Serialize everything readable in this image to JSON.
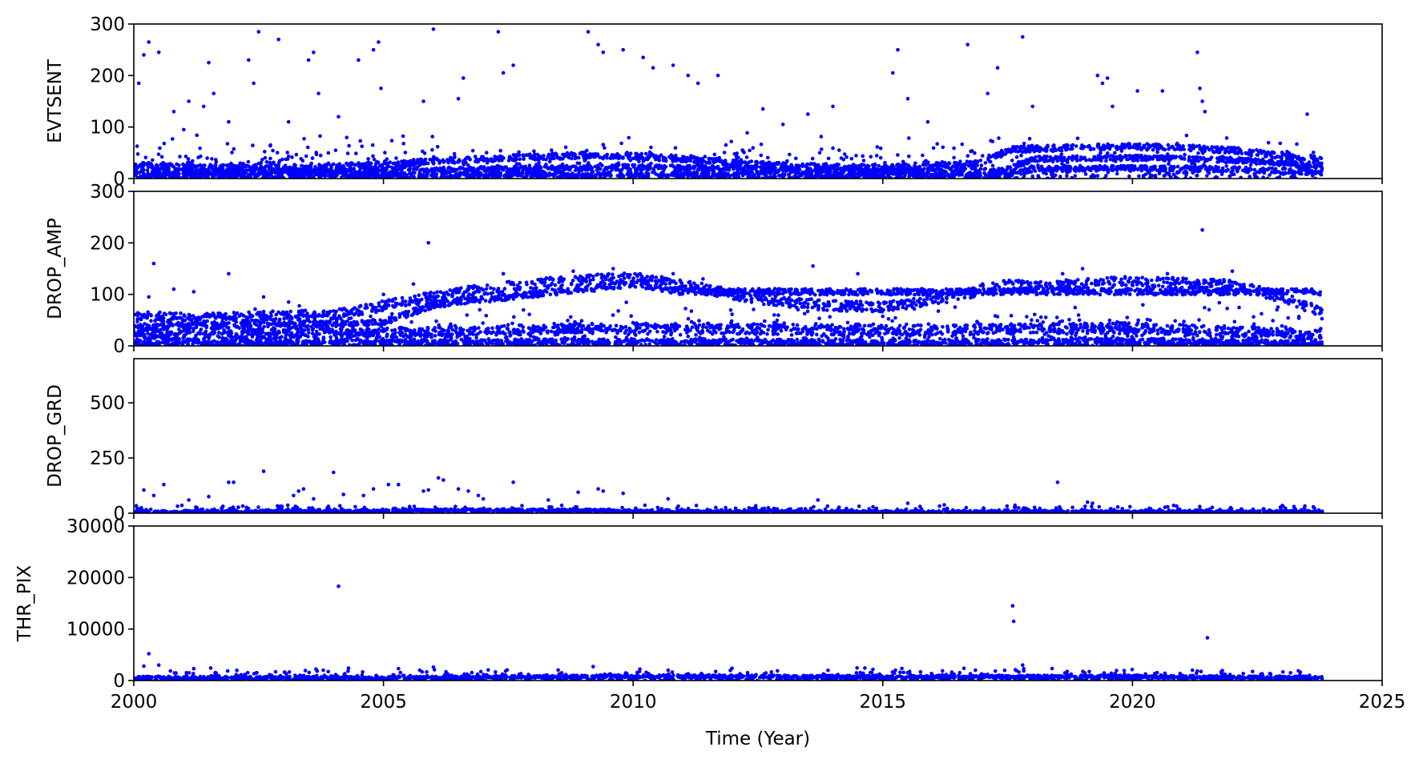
{
  "chart_data": {
    "type": "scatter",
    "xlabel": "Time (Year)",
    "xlim": [
      2000,
      2025
    ],
    "xticks": [
      "2000",
      "2005",
      "2010",
      "2015",
      "2020",
      "2025"
    ],
    "marker_color": "#0000ff",
    "panels": [
      {
        "ylabel": "EVTSENT",
        "ylim": [
          0,
          300
        ],
        "yticks": [
          "0",
          "100",
          "200",
          "300"
        ],
        "yticks_values": [
          0,
          100,
          200,
          300
        ],
        "bands": [
          {
            "x": [
              2000.0,
              2001,
              2002,
              2003,
              2004,
              2005,
              2006,
              2007,
              2008,
              2009,
              2010,
              2011,
              2012,
              2013,
              2014,
              2015,
              2016,
              2017,
              2017.5,
              2018,
              2019,
              2020,
              2021,
              2022,
              2023,
              2023.8
            ],
            "y": [
              25,
              22,
              20,
              20,
              22,
              28,
              33,
              38,
              42,
              45,
              44,
              38,
              30,
              25,
              22,
              22,
              25,
              30,
              55,
              58,
              60,
              62,
              60,
              55,
              45,
              38
            ],
            "spread": 6
          },
          {
            "x": [
              2000.0,
              2005,
              2010,
              2015,
              2017.5,
              2018,
              2020,
              2022,
              2023.8
            ],
            "y": [
              12,
              15,
              22,
              14,
              16,
              38,
              40,
              36,
              25
            ],
            "spread": 5
          },
          {
            "x": [
              2000.0,
              2005,
              2010,
              2015,
              2017.5,
              2018,
              2020,
              2022,
              2023.8
            ],
            "y": [
              5,
              6,
              8,
              5,
              6,
              18,
              20,
              18,
              12
            ],
            "spread": 5
          }
        ],
        "scatter_range": [
          0,
          90
        ],
        "outliers": [
          [
            2000.1,
            185
          ],
          [
            2000.2,
            240
          ],
          [
            2000.3,
            265
          ],
          [
            2000.5,
            245
          ],
          [
            2000.8,
            130
          ],
          [
            2001.0,
            95
          ],
          [
            2001.1,
            150
          ],
          [
            2001.4,
            140
          ],
          [
            2001.5,
            225
          ],
          [
            2001.6,
            165
          ],
          [
            2001.9,
            110
          ],
          [
            2002.3,
            230
          ],
          [
            2002.4,
            185
          ],
          [
            2002.5,
            285
          ],
          [
            2002.9,
            270
          ],
          [
            2003.1,
            110
          ],
          [
            2003.5,
            230
          ],
          [
            2003.6,
            245
          ],
          [
            2003.7,
            165
          ],
          [
            2004.1,
            120
          ],
          [
            2004.5,
            230
          ],
          [
            2004.8,
            250
          ],
          [
            2004.9,
            265
          ],
          [
            2004.95,
            175
          ],
          [
            2005.8,
            150
          ],
          [
            2006.0,
            290
          ],
          [
            2006.5,
            155
          ],
          [
            2006.6,
            195
          ],
          [
            2007.3,
            285
          ],
          [
            2007.4,
            205
          ],
          [
            2007.6,
            220
          ],
          [
            2009.1,
            285
          ],
          [
            2009.3,
            260
          ],
          [
            2009.4,
            245
          ],
          [
            2009.8,
            250
          ],
          [
            2010.2,
            235
          ],
          [
            2010.4,
            215
          ],
          [
            2010.8,
            220
          ],
          [
            2011.1,
            200
          ],
          [
            2011.3,
            185
          ],
          [
            2011.7,
            200
          ],
          [
            2012.6,
            135
          ],
          [
            2013.0,
            105
          ],
          [
            2013.5,
            125
          ],
          [
            2014.0,
            140
          ],
          [
            2015.2,
            205
          ],
          [
            2015.3,
            250
          ],
          [
            2015.5,
            155
          ],
          [
            2015.9,
            110
          ],
          [
            2016.7,
            260
          ],
          [
            2017.1,
            165
          ],
          [
            2017.3,
            215
          ],
          [
            2017.8,
            275
          ],
          [
            2018.0,
            140
          ],
          [
            2019.3,
            200
          ],
          [
            2019.4,
            185
          ],
          [
            2019.5,
            195
          ],
          [
            2019.6,
            140
          ],
          [
            2020.1,
            170
          ],
          [
            2020.6,
            170
          ],
          [
            2021.3,
            245
          ],
          [
            2021.35,
            175
          ],
          [
            2021.4,
            150
          ],
          [
            2021.45,
            130
          ],
          [
            2023.5,
            125
          ]
        ]
      },
      {
        "ylabel": "DROP_AMP",
        "ylim": [
          0,
          300
        ],
        "yticks": [
          "0",
          "100",
          "200",
          "300"
        ],
        "yticks_values": [
          0,
          100,
          200,
          300
        ],
        "bands": [
          {
            "x": [
              2000.0,
              2001,
              2002,
              2003,
              2004,
              2005,
              2006,
              2007,
              2008,
              2009,
              2010,
              2011,
              2012,
              2013,
              2014,
              2015,
              2016,
              2017,
              2017.5,
              2018,
              2019,
              2020,
              2021,
              2022,
              2023,
              2023.8
            ],
            "y": [
              60,
              52,
              55,
              58,
              60,
              78,
              95,
              110,
              120,
              128,
              132,
              118,
              100,
              85,
              78,
              76,
              88,
              108,
              118,
              115,
              120,
              125,
              122,
              118,
              95,
              65
            ],
            "spread": 10
          },
          {
            "x": [
              2000.0,
              2005,
              2006,
              2008,
              2010,
              2011
            ],
            "y": [
              35,
              45,
              80,
              100,
              120,
              105
            ],
            "spread": 6
          },
          {
            "x": [
              2000.0,
              2005,
              2010,
              2015,
              2020,
              2023.8
            ],
            "y": [
              20,
              25,
              35,
              30,
              35,
              20
            ],
            "spread": 10
          },
          {
            "x": [
              2000.0,
              2005,
              2010,
              2015,
              2020,
              2023.8
            ],
            "y": [
              5,
              6,
              8,
              6,
              8,
              5
            ],
            "spread": 6
          }
        ],
        "scatter_range": [
          0,
          90
        ],
        "outliers": [
          [
            2000.3,
            95
          ],
          [
            2000.4,
            160
          ],
          [
            2000.8,
            110
          ],
          [
            2001.2,
            105
          ],
          [
            2001.9,
            140
          ],
          [
            2002.6,
            95
          ],
          [
            2003.1,
            85
          ],
          [
            2005.0,
            100
          ],
          [
            2005.6,
            120
          ],
          [
            2005.9,
            200
          ],
          [
            2007.4,
            140
          ],
          [
            2008.8,
            145
          ],
          [
            2009.6,
            150
          ],
          [
            2010.8,
            140
          ],
          [
            2011.4,
            130
          ],
          [
            2013.6,
            155
          ],
          [
            2014.5,
            140
          ],
          [
            2015.8,
            105
          ],
          [
            2017.0,
            120
          ],
          [
            2018.6,
            140
          ],
          [
            2019.0,
            150
          ],
          [
            2020.7,
            140
          ],
          [
            2021.4,
            225
          ],
          [
            2022.0,
            145
          ]
        ]
      },
      {
        "ylabel": "DROP_GRD",
        "ylim": [
          0,
          700
        ],
        "yticks": [
          "0",
          "250",
          "500"
        ],
        "yticks_values": [
          0,
          250,
          500
        ],
        "bands": [
          {
            "x": [
              2000.0,
              2005,
              2006,
              2009,
              2010,
              2015,
              2020,
              2023.8
            ],
            "y": [
              6,
              8,
              14,
              14,
              8,
              6,
              6,
              5
            ],
            "spread": 5
          }
        ],
        "scatter_range": [
          0,
          40
        ],
        "outliers": [
          [
            2000.2,
            105
          ],
          [
            2000.4,
            80
          ],
          [
            2000.6,
            130
          ],
          [
            2001.1,
            60
          ],
          [
            2001.5,
            75
          ],
          [
            2001.9,
            140
          ],
          [
            2002.0,
            140
          ],
          [
            2002.6,
            190
          ],
          [
            2003.2,
            80
          ],
          [
            2003.3,
            100
          ],
          [
            2003.4,
            110
          ],
          [
            2003.6,
            65
          ],
          [
            2004.0,
            185
          ],
          [
            2004.2,
            85
          ],
          [
            2004.6,
            80
          ],
          [
            2004.8,
            110
          ],
          [
            2005.1,
            130
          ],
          [
            2005.3,
            130
          ],
          [
            2005.8,
            100
          ],
          [
            2005.9,
            105
          ],
          [
            2006.1,
            160
          ],
          [
            2006.2,
            150
          ],
          [
            2006.5,
            110
          ],
          [
            2006.7,
            100
          ],
          [
            2006.9,
            80
          ],
          [
            2007.0,
            65
          ],
          [
            2007.6,
            140
          ],
          [
            2008.3,
            60
          ],
          [
            2008.9,
            95
          ],
          [
            2009.3,
            110
          ],
          [
            2009.4,
            100
          ],
          [
            2009.8,
            90
          ],
          [
            2010.7,
            65
          ],
          [
            2013.7,
            60
          ],
          [
            2015.5,
            45
          ],
          [
            2018.5,
            140
          ],
          [
            2019.1,
            50
          ],
          [
            2019.2,
            45
          ],
          [
            2023.0,
            35
          ]
        ]
      },
      {
        "ylabel": "THR_PIX",
        "ylim": [
          0,
          30000
        ],
        "yticks": [
          "0",
          "10000",
          "20000",
          "30000"
        ],
        "yticks_values": [
          0,
          10000,
          20000,
          30000
        ],
        "bands": [
          {
            "x": [
              2000.0,
              2005,
              2010,
              2015,
              2020,
              2023.8
            ],
            "y": [
              550,
              500,
              850,
              700,
              800,
              550
            ],
            "spread": 250
          }
        ],
        "scatter_range": [
          0,
          2600
        ],
        "outliers": [
          [
            2000.2,
            2800
          ],
          [
            2000.3,
            5200
          ],
          [
            2000.5,
            3000
          ],
          [
            2001.2,
            2300
          ],
          [
            2004.1,
            18300
          ],
          [
            2004.3,
            2400
          ],
          [
            2006.0,
            2600
          ],
          [
            2009.2,
            2700
          ],
          [
            2017.6,
            14500
          ],
          [
            2017.62,
            11500
          ],
          [
            2017.8,
            3000
          ],
          [
            2021.5,
            8300
          ],
          [
            2021.2,
            2000
          ]
        ]
      }
    ]
  }
}
